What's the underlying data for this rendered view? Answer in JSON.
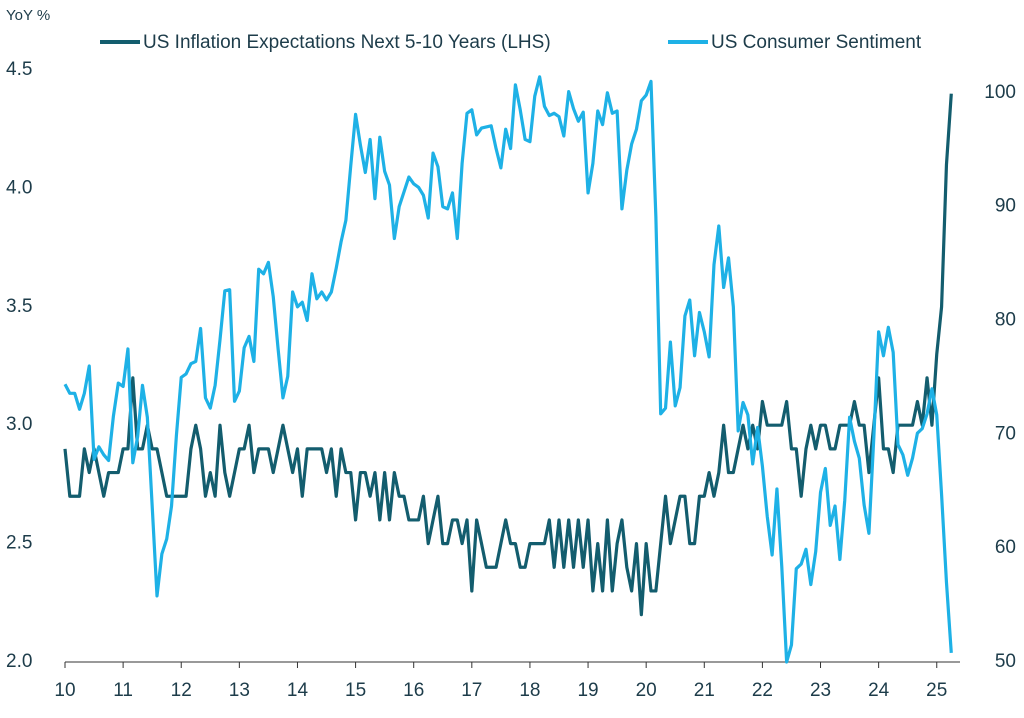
{
  "chart_data": {
    "type": "line",
    "y_label": "YoY %",
    "x": [
      2010,
      2010.083,
      2010.167,
      2010.25,
      2010.333,
      2010.417,
      2010.5,
      2010.583,
      2010.667,
      2010.75,
      2010.833,
      2010.917,
      2011,
      2011.083,
      2011.167,
      2011.25,
      2011.333,
      2011.417,
      2011.5,
      2011.583,
      2011.667,
      2011.75,
      2011.833,
      2011.917,
      2012,
      2012.083,
      2012.167,
      2012.25,
      2012.333,
      2012.417,
      2012.5,
      2012.583,
      2012.667,
      2012.75,
      2012.833,
      2012.917,
      2013,
      2013.083,
      2013.167,
      2013.25,
      2013.333,
      2013.417,
      2013.5,
      2013.583,
      2013.667,
      2013.75,
      2013.833,
      2013.917,
      2014,
      2014.083,
      2014.167,
      2014.25,
      2014.333,
      2014.417,
      2014.5,
      2014.583,
      2014.667,
      2014.75,
      2014.833,
      2014.917,
      2015,
      2015.083,
      2015.167,
      2015.25,
      2015.333,
      2015.417,
      2015.5,
      2015.583,
      2015.667,
      2015.75,
      2015.833,
      2015.917,
      2016,
      2016.083,
      2016.167,
      2016.25,
      2016.333,
      2016.417,
      2016.5,
      2016.583,
      2016.667,
      2016.75,
      2016.833,
      2016.917,
      2017,
      2017.083,
      2017.167,
      2017.25,
      2017.333,
      2017.417,
      2017.5,
      2017.583,
      2017.667,
      2017.75,
      2017.833,
      2017.917,
      2018,
      2018.083,
      2018.167,
      2018.25,
      2018.333,
      2018.417,
      2018.5,
      2018.583,
      2018.667,
      2018.75,
      2018.833,
      2018.917,
      2019,
      2019.083,
      2019.167,
      2019.25,
      2019.333,
      2019.417,
      2019.5,
      2019.583,
      2019.667,
      2019.75,
      2019.833,
      2019.917,
      2020,
      2020.083,
      2020.167,
      2020.25,
      2020.333,
      2020.417,
      2020.5,
      2020.583,
      2020.667,
      2020.75,
      2020.833,
      2020.917,
      2021,
      2021.083,
      2021.167,
      2021.25,
      2021.333,
      2021.417,
      2021.5,
      2021.583,
      2021.667,
      2021.75,
      2021.833,
      2021.917,
      2022,
      2022.083,
      2022.167,
      2022.25,
      2022.333,
      2022.417,
      2022.5,
      2022.583,
      2022.667,
      2022.75,
      2022.833,
      2022.917,
      2023,
      2023.083,
      2023.167,
      2023.25,
      2023.333,
      2023.417,
      2023.5,
      2023.583,
      2023.667,
      2023.75,
      2023.833,
      2023.917,
      2024,
      2024.083,
      2024.167,
      2024.25,
      2024.333,
      2024.417,
      2024.5,
      2024.583,
      2024.667,
      2024.75,
      2024.833,
      2024.917,
      2025,
      2025.083,
      2025.167,
      2025.25
    ],
    "series": [
      {
        "name": "US Inflation Expectations Next 5-10 Years (LHS)",
        "color": "#135d6e",
        "values": [
          2.9,
          2.7,
          2.7,
          2.7,
          2.9,
          2.8,
          2.9,
          2.8,
          2.7,
          2.8,
          2.8,
          2.8,
          2.9,
          2.9,
          3.2,
          2.9,
          2.9,
          3.0,
          2.9,
          2.9,
          2.8,
          2.7,
          2.7,
          2.7,
          2.7,
          2.7,
          2.9,
          3.0,
          2.9,
          2.7,
          2.8,
          2.7,
          3.0,
          2.8,
          2.7,
          2.8,
          2.9,
          2.9,
          3.0,
          2.8,
          2.9,
          2.9,
          2.9,
          2.8,
          2.9,
          3.0,
          2.9,
          2.8,
          2.9,
          2.7,
          2.9,
          2.9,
          2.9,
          2.9,
          2.8,
          2.9,
          2.7,
          2.9,
          2.8,
          2.8,
          2.6,
          2.8,
          2.8,
          2.7,
          2.8,
          2.6,
          2.8,
          2.6,
          2.8,
          2.7,
          2.7,
          2.6,
          2.6,
          2.6,
          2.7,
          2.5,
          2.6,
          2.7,
          2.5,
          2.5,
          2.6,
          2.6,
          2.5,
          2.6,
          2.3,
          2.6,
          2.5,
          2.4,
          2.4,
          2.4,
          2.5,
          2.6,
          2.5,
          2.5,
          2.4,
          2.4,
          2.5,
          2.5,
          2.5,
          2.5,
          2.6,
          2.4,
          2.6,
          2.4,
          2.6,
          2.4,
          2.6,
          2.4,
          2.6,
          2.3,
          2.5,
          2.3,
          2.6,
          2.3,
          2.5,
          2.6,
          2.4,
          2.3,
          2.5,
          2.2,
          2.5,
          2.3,
          2.3,
          2.5,
          2.7,
          2.5,
          2.6,
          2.7,
          2.7,
          2.5,
          2.5,
          2.7,
          2.7,
          2.8,
          2.7,
          2.8,
          3.0,
          2.8,
          2.8,
          2.9,
          3.0,
          2.9,
          3.0,
          2.9,
          3.1,
          3.0,
          3.0,
          3.0,
          3.0,
          3.1,
          2.9,
          2.9,
          2.7,
          2.9,
          3.0,
          2.9,
          3.0,
          3.0,
          2.9,
          2.9,
          3.0,
          3.0,
          3.0,
          3.1,
          3.0,
          3.0,
          2.8,
          3.0,
          3.2,
          2.9,
          2.9,
          2.8,
          3.0,
          3.0,
          3.0,
          3.0,
          3.1,
          3.0,
          3.2,
          3.0,
          3.3,
          3.5,
          4.1,
          4.4
        ]
      },
      {
        "name": "US Consumer Sentiment",
        "color": "#1eb1e6",
        "axis": "y2",
        "values": [
          74.4,
          73.6,
          73.6,
          72.2,
          73.6,
          76.0,
          67.8,
          68.9,
          68.2,
          67.7,
          71.6,
          74.5,
          74.2,
          77.5,
          67.5,
          69.8,
          74.3,
          71.5,
          63.7,
          55.8,
          59.5,
          60.8,
          63.7,
          69.9,
          75.0,
          75.3,
          76.2,
          76.4,
          79.3,
          73.2,
          72.3,
          74.3,
          78.3,
          82.6,
          82.7,
          72.9,
          73.8,
          77.6,
          78.6,
          76.4,
          84.5,
          84.1,
          85.1,
          82.1,
          77.5,
          73.2,
          75.1,
          82.5,
          81.2,
          81.6,
          80.0,
          84.1,
          81.9,
          82.5,
          81.8,
          82.5,
          84.6,
          86.9,
          88.8,
          93.6,
          98.1,
          95.4,
          93.0,
          95.9,
          90.7,
          96.1,
          93.1,
          91.9,
          87.2,
          90.0,
          91.3,
          92.6,
          92.0,
          91.7,
          91.0,
          89.0,
          94.7,
          93.5,
          90.0,
          89.8,
          91.2,
          87.2,
          93.8,
          98.2,
          98.5,
          96.3,
          96.9,
          97.0,
          97.1,
          95.1,
          93.4,
          96.8,
          95.1,
          100.7,
          98.5,
          95.9,
          95.7,
          99.7,
          101.4,
          98.8,
          98.0,
          98.2,
          97.9,
          96.2,
          100.1,
          98.6,
          97.5,
          98.3,
          91.2,
          93.8,
          98.4,
          97.2,
          100.0,
          98.2,
          98.4,
          89.8,
          93.2,
          95.5,
          96.8,
          99.3,
          99.8,
          101.0,
          89.1,
          71.8,
          72.3,
          78.1,
          72.5,
          74.1,
          80.4,
          81.8,
          76.9,
          80.7,
          79.0,
          76.8,
          84.9,
          88.3,
          82.9,
          85.5,
          81.2,
          70.3,
          72.8,
          71.7,
          67.4,
          70.6,
          67.2,
          62.8,
          59.4,
          65.2,
          58.4,
          50.0,
          51.5,
          58.2,
          58.6,
          59.9,
          56.8,
          59.7,
          64.9,
          67.0,
          62.0,
          63.7,
          59.0,
          64.2,
          71.5,
          69.4,
          67.9,
          63.8,
          61.3,
          69.7,
          79.0,
          76.9,
          79.4,
          77.2,
          69.1,
          68.2,
          66.4,
          67.9,
          70.1,
          70.5,
          71.8,
          74.0,
          71.7,
          64.7,
          57.0,
          50.8
        ]
      }
    ],
    "xlim": [
      2010,
      2025.4
    ],
    "xticks": [
      {
        "value": 2010,
        "label": "10"
      },
      {
        "value": 2011,
        "label": "11"
      },
      {
        "value": 2012,
        "label": "12"
      },
      {
        "value": 2013,
        "label": "13"
      },
      {
        "value": 2014,
        "label": "14"
      },
      {
        "value": 2015,
        "label": "15"
      },
      {
        "value": 2016,
        "label": "16"
      },
      {
        "value": 2017,
        "label": "17"
      },
      {
        "value": 2018,
        "label": "18"
      },
      {
        "value": 2019,
        "label": "19"
      },
      {
        "value": 2020,
        "label": "20"
      },
      {
        "value": 2021,
        "label": "21"
      },
      {
        "value": 2022,
        "label": "22"
      },
      {
        "value": 2023,
        "label": "23"
      },
      {
        "value": 2024,
        "label": "24"
      },
      {
        "value": 2025,
        "label": "25"
      }
    ],
    "ylim": [
      2,
      4.5
    ],
    "yticks": [
      {
        "value": 2,
        "label": "2.0"
      },
      2.5,
      {
        "value": 3,
        "label": "3.0"
      },
      3.5,
      {
        "value": 4,
        "label": "4.0"
      },
      4.5
    ],
    "y2lim": [
      50,
      102
    ],
    "y2ticks": [
      50,
      60,
      70,
      80,
      90,
      100
    ],
    "grid": false,
    "legend": "top"
  }
}
